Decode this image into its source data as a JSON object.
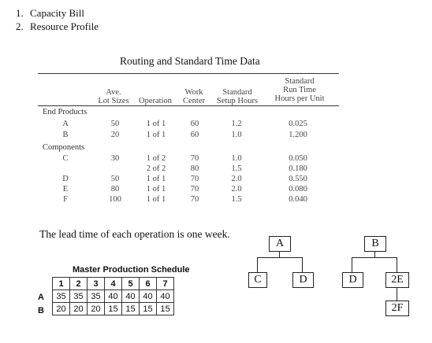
{
  "list_items": [
    {
      "num": "1.",
      "text": "Capacity Bill"
    },
    {
      "num": "2.",
      "text": "Resource Profile"
    }
  ],
  "routing": {
    "title": "Routing and Standard Time Data",
    "headers": {
      "lot_sizes": [
        "Ave.",
        "Lot Sizes"
      ],
      "operation": "Operation",
      "work_center": [
        "Work",
        "Center"
      ],
      "setup": [
        "Standard",
        "Setup Hours"
      ],
      "run_time": [
        "Standard",
        "Run Time",
        "Hours per Unit"
      ]
    },
    "end_products_label": "End Products",
    "components_label": "Components",
    "end_products": [
      {
        "item": "A",
        "lot": "50",
        "op": "1 of 1",
        "wc": "60",
        "setup": "1.2",
        "run": "0.025"
      },
      {
        "item": "B",
        "lot": "20",
        "op": "1 of 1",
        "wc": "60",
        "setup": "1.0",
        "run": "1.200"
      }
    ],
    "components": [
      {
        "item": "C",
        "lot": "30",
        "op": "1 of 2",
        "wc": "70",
        "setup": "1.0",
        "run": "0.050"
      },
      {
        "item": "",
        "lot": "",
        "op": "2 of 2",
        "wc": "80",
        "setup": "1.5",
        "run": "0.180"
      },
      {
        "item": "D",
        "lot": "50",
        "op": "1 of 1",
        "wc": "70",
        "setup": "2.0",
        "run": "0.550"
      },
      {
        "item": "E",
        "lot": "80",
        "op": "1 of 1",
        "wc": "70",
        "setup": "2.0",
        "run": "0.080"
      },
      {
        "item": "F",
        "lot": "100",
        "op": "1 of 1",
        "wc": "70",
        "setup": "1.5",
        "run": "0.040"
      }
    ]
  },
  "lead_time_text": "The lead time of each operation is one week.",
  "bom": {
    "A": "A",
    "C": "C",
    "D1": "D",
    "B": "B",
    "D2": "D",
    "E": "2E",
    "F": "2F"
  },
  "mps": {
    "title": "Master Production Schedule",
    "periods": [
      "1",
      "2",
      "3",
      "4",
      "5",
      "6",
      "7"
    ],
    "rows": [
      {
        "label": "A",
        "values": [
          "35",
          "35",
          "35",
          "40",
          "40",
          "40",
          "40"
        ]
      },
      {
        "label": "B",
        "values": [
          "20",
          "20",
          "20",
          "15",
          "15",
          "15",
          "15"
        ]
      }
    ]
  }
}
